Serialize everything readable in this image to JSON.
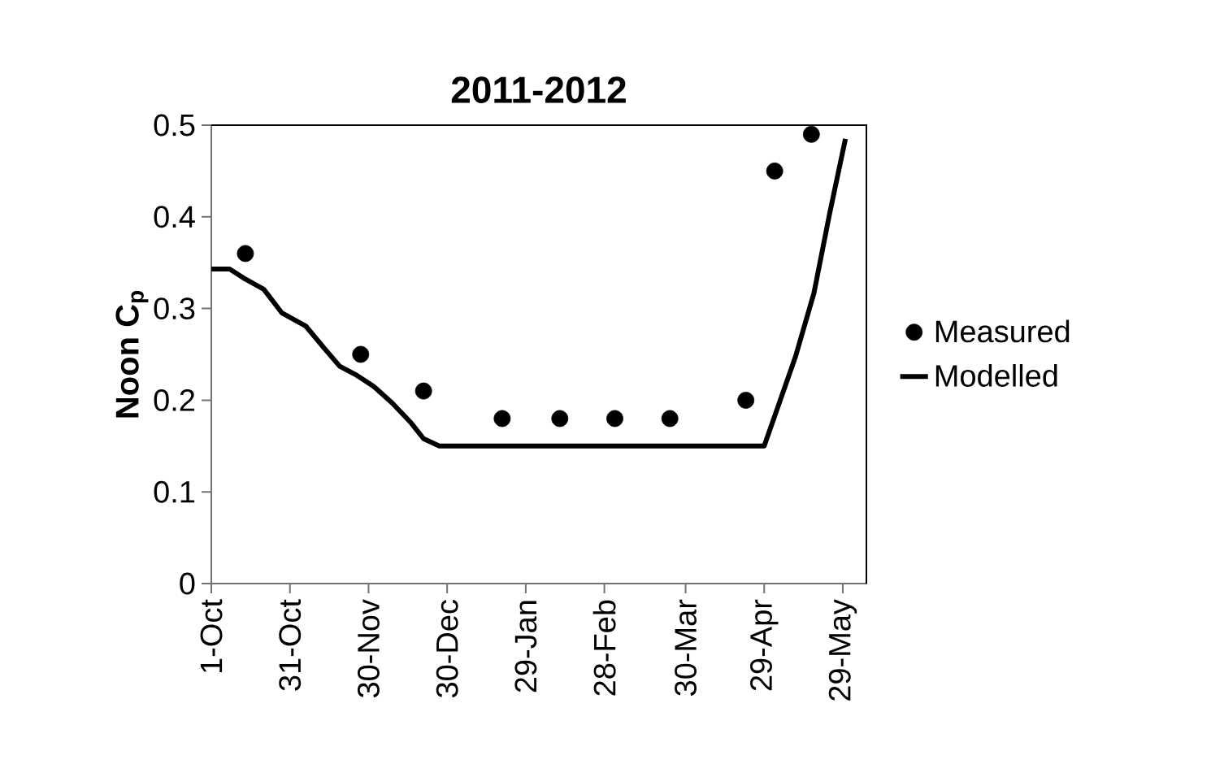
{
  "chart_data": {
    "type": "line",
    "title": "2011-2012",
    "ylabel": "Noon C$_{p}$",
    "xlim": [
      "2011-10-01",
      "2012-06-07"
    ],
    "ylim": [
      0,
      0.5
    ],
    "xticks": [
      {
        "value": "2011-10-01",
        "label": "1-Oct"
      },
      {
        "value": "2011-10-31",
        "label": "31-Oct"
      },
      {
        "value": "2011-11-30",
        "label": "30-Nov"
      },
      {
        "value": "2011-12-30",
        "label": "30-Dec"
      },
      {
        "value": "2012-01-29",
        "label": "29-Jan"
      },
      {
        "value": "2012-02-28",
        "label": "28-Feb"
      },
      {
        "value": "2012-03-30",
        "label": "30-Mar"
      },
      {
        "value": "2012-04-29",
        "label": "29-Apr"
      },
      {
        "value": "2012-05-29",
        "label": "29-May"
      }
    ],
    "yticks": [
      0,
      0.1,
      0.2,
      0.3,
      0.4,
      0.5
    ],
    "legend": "right",
    "grid": false,
    "series": [
      {
        "name": "Measured",
        "type": "scatter",
        "marker": "circle",
        "color": "#000000",
        "x": [
          "2011-10-14",
          "2011-11-27",
          "2011-12-21",
          "2012-01-20",
          "2012-02-11",
          "2012-03-03",
          "2012-03-24",
          "2012-04-22",
          "2012-05-03",
          "2012-05-17"
        ],
        "values": [
          0.36,
          0.25,
          0.21,
          0.18,
          0.18,
          0.18,
          0.18,
          0.2,
          0.45,
          0.49
        ]
      },
      {
        "name": "Modelled",
        "marker": "none",
        "line_style": "solid",
        "color": "#000000",
        "x": [
          "2011-10-01",
          "2011-10-08",
          "2011-10-14",
          "2011-10-21",
          "2011-10-28",
          "2011-11-06",
          "2011-11-13",
          "2011-11-19",
          "2011-11-25",
          "2011-12-02",
          "2011-12-09",
          "2011-12-16",
          "2011-12-21",
          "2011-12-27",
          "2012-04-29",
          "2012-05-11",
          "2012-05-18",
          "2012-05-24",
          "2012-05-30"
        ],
        "values": [
          0.343,
          0.343,
          0.332,
          0.321,
          0.295,
          0.281,
          0.257,
          0.237,
          0.228,
          0.215,
          0.197,
          0.176,
          0.158,
          0.15,
          0.15,
          0.248,
          0.317,
          0.404,
          0.485
        ]
      }
    ]
  }
}
